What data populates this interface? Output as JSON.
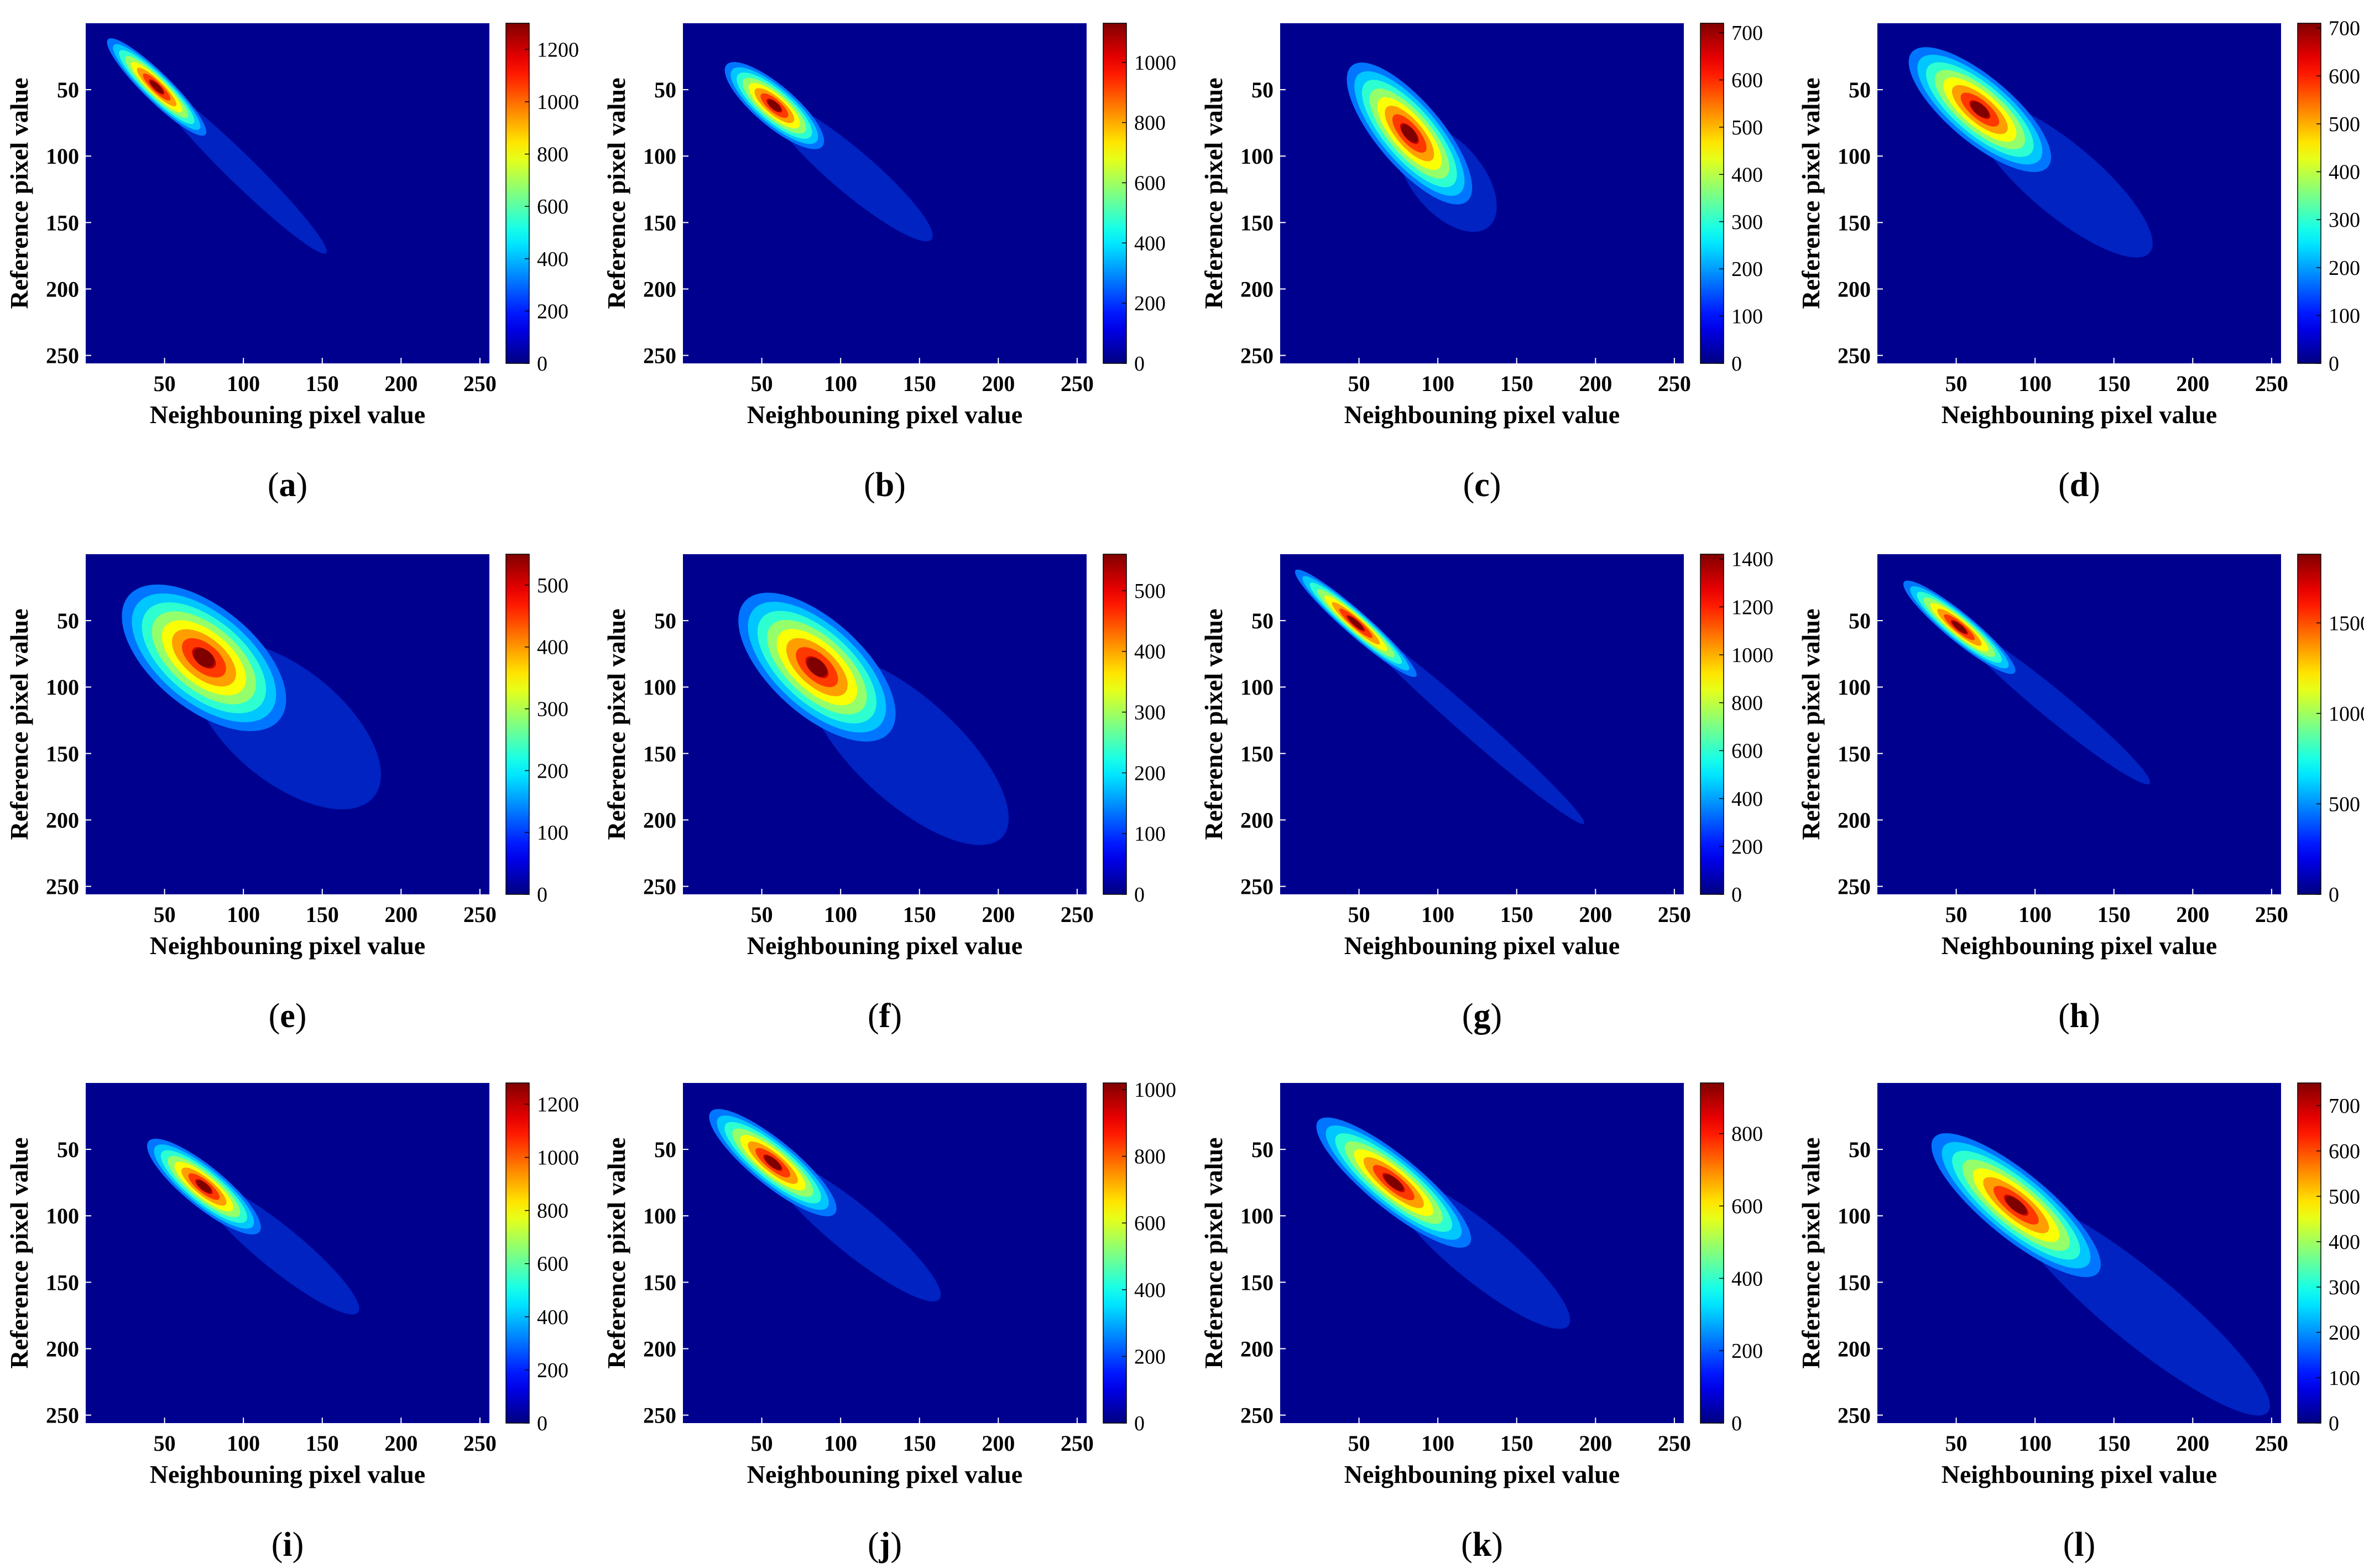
{
  "chart_data": [
    {
      "id": "a",
      "type": "heatmap",
      "caption": "a",
      "xlabel": "Neighbouning pixel value",
      "ylabel": "Reference pixel value",
      "xticks": [
        50,
        100,
        150,
        200,
        250
      ],
      "yticks": [
        50,
        100,
        150,
        200,
        250
      ],
      "xlim": [
        0,
        256
      ],
      "ylim": [
        0,
        256
      ],
      "y_reversed": true,
      "colormap": "jet",
      "cbar_range": [
        0,
        1300
      ],
      "cbar_ticks": [
        0,
        200,
        400,
        600,
        800,
        1000,
        1200
      ],
      "peak": {
        "x": 45,
        "y": 48,
        "value": 1300
      },
      "spread": {
        "major": 38,
        "minor": 6
      },
      "tail_to": [
        150,
        170
      ]
    },
    {
      "id": "b",
      "type": "heatmap",
      "caption": "b",
      "xlabel": "Neighbouning pixel value",
      "ylabel": "Reference pixel value",
      "xticks": [
        50,
        100,
        150,
        200,
        250
      ],
      "yticks": [
        50,
        100,
        150,
        200,
        250
      ],
      "xlim": [
        0,
        256
      ],
      "ylim": [
        0,
        256
      ],
      "y_reversed": true,
      "colormap": "jet",
      "cbar_range": [
        0,
        1130
      ],
      "cbar_ticks": [
        0,
        200,
        400,
        600,
        800,
        1000
      ],
      "peak": {
        "x": 58,
        "y": 62,
        "value": 1130
      },
      "spread": {
        "major": 35,
        "minor": 9
      },
      "tail_to": [
        155,
        160
      ]
    },
    {
      "id": "c",
      "type": "heatmap",
      "caption": "c",
      "xlabel": "Neighbouning pixel value",
      "ylabel": "Reference pixel value",
      "xticks": [
        50,
        100,
        150,
        200,
        250
      ],
      "yticks": [
        50,
        100,
        150,
        200,
        250
      ],
      "xlim": [
        0,
        256
      ],
      "ylim": [
        0,
        256
      ],
      "y_reversed": true,
      "colormap": "jet",
      "cbar_range": [
        0,
        720
      ],
      "cbar_ticks": [
        0,
        100,
        200,
        300,
        400,
        500,
        600,
        700
      ],
      "peak": {
        "x": 82,
        "y": 83,
        "value": 720
      },
      "spread": {
        "major": 50,
        "minor": 15
      },
      "tail_to": [
        130,
        150
      ]
    },
    {
      "id": "d",
      "type": "heatmap",
      "caption": "d",
      "xlabel": "Neighbouning pixel value",
      "ylabel": "Reference pixel value",
      "xticks": [
        50,
        100,
        150,
        200,
        250
      ],
      "yticks": [
        50,
        100,
        150,
        200,
        250
      ],
      "xlim": [
        0,
        256
      ],
      "ylim": [
        0,
        256
      ],
      "y_reversed": true,
      "colormap": "jet",
      "cbar_range": [
        0,
        710
      ],
      "cbar_ticks": [
        0,
        100,
        200,
        300,
        400,
        500,
        600,
        700
      ],
      "peak": {
        "x": 65,
        "y": 65,
        "value": 710
      },
      "spread": {
        "major": 50,
        "minor": 15
      },
      "tail_to": [
        170,
        170
      ]
    },
    {
      "id": "e",
      "type": "heatmap",
      "caption": "e",
      "xlabel": "Neighbouning pixel value",
      "ylabel": "Reference pixel value",
      "xticks": [
        50,
        100,
        150,
        200,
        250
      ],
      "yticks": [
        50,
        100,
        150,
        200,
        250
      ],
      "xlim": [
        0,
        256
      ],
      "ylim": [
        0,
        256
      ],
      "y_reversed": true,
      "colormap": "jet",
      "cbar_range": [
        0,
        550
      ],
      "cbar_ticks": [
        0,
        100,
        200,
        300,
        400,
        500
      ],
      "peak": {
        "x": 75,
        "y": 78,
        "value": 550
      },
      "spread": {
        "major": 55,
        "minor": 24
      },
      "tail_to": [
        180,
        180
      ]
    },
    {
      "id": "f",
      "type": "heatmap",
      "caption": "f",
      "xlabel": "Neighbouning pixel value",
      "ylabel": "Reference pixel value",
      "xticks": [
        50,
        100,
        150,
        200,
        250
      ],
      "yticks": [
        50,
        100,
        150,
        200,
        250
      ],
      "xlim": [
        0,
        256
      ],
      "ylim": [
        0,
        256
      ],
      "y_reversed": true,
      "colormap": "jet",
      "cbar_range": [
        0,
        560
      ],
      "cbar_ticks": [
        0,
        100,
        200,
        300,
        400,
        500
      ],
      "peak": {
        "x": 85,
        "y": 85,
        "value": 560
      },
      "spread": {
        "major": 55,
        "minor": 22
      },
      "tail_to": [
        200,
        210
      ]
    },
    {
      "id": "g",
      "type": "heatmap",
      "caption": "g",
      "xlabel": "Neighbouning pixel value",
      "ylabel": "Reference pixel value",
      "xticks": [
        50,
        100,
        150,
        200,
        250
      ],
      "yticks": [
        50,
        100,
        150,
        200,
        250
      ],
      "xlim": [
        0,
        256
      ],
      "ylim": [
        0,
        256
      ],
      "y_reversed": true,
      "colormap": "jet",
      "cbar_range": [
        0,
        1420
      ],
      "cbar_ticks": [
        0,
        200,
        400,
        600,
        800,
        1000,
        1200,
        1400
      ],
      "peak": {
        "x": 48,
        "y": 52,
        "value": 1420
      },
      "spread": {
        "major": 45,
        "minor": 5
      },
      "tail_to": [
        190,
        200
      ]
    },
    {
      "id": "h",
      "type": "heatmap",
      "caption": "h",
      "xlabel": "Neighbouning pixel value",
      "ylabel": "Reference pixel value",
      "xticks": [
        50,
        100,
        150,
        200,
        250
      ],
      "yticks": [
        50,
        100,
        150,
        200,
        250
      ],
      "xlim": [
        0,
        256
      ],
      "ylim": [
        0,
        256
      ],
      "y_reversed": true,
      "colormap": "jet",
      "cbar_range": [
        0,
        1880
      ],
      "cbar_ticks": [
        0,
        500,
        1000,
        1500
      ],
      "peak": {
        "x": 52,
        "y": 55,
        "value": 1880
      },
      "spread": {
        "major": 40,
        "minor": 6
      },
      "tail_to": [
        170,
        170
      ]
    },
    {
      "id": "i",
      "type": "heatmap",
      "caption": "i",
      "xlabel": "Neighbouning pixel value",
      "ylabel": "Reference pixel value",
      "xticks": [
        50,
        100,
        150,
        200,
        250
      ],
      "yticks": [
        50,
        100,
        150,
        200,
        250
      ],
      "xlim": [
        0,
        256
      ],
      "ylim": [
        0,
        256
      ],
      "y_reversed": true,
      "colormap": "jet",
      "cbar_range": [
        0,
        1280
      ],
      "cbar_ticks": [
        0,
        200,
        400,
        600,
        800,
        1000,
        1200
      ],
      "peak": {
        "x": 75,
        "y": 78,
        "value": 1280
      },
      "spread": {
        "major": 40,
        "minor": 9
      },
      "tail_to": [
        170,
        170
      ]
    },
    {
      "id": "j",
      "type": "heatmap",
      "caption": "j",
      "xlabel": "Neighbouning pixel value",
      "ylabel": "Reference pixel value",
      "xticks": [
        50,
        100,
        150,
        200,
        250
      ],
      "yticks": [
        50,
        100,
        150,
        200,
        250
      ],
      "xlim": [
        0,
        256
      ],
      "ylim": [
        0,
        256
      ],
      "y_reversed": true,
      "colormap": "jet",
      "cbar_range": [
        0,
        1020
      ],
      "cbar_ticks": [
        0,
        200,
        400,
        600,
        800,
        1000
      ],
      "peak": {
        "x": 57,
        "y": 60,
        "value": 1020
      },
      "spread": {
        "major": 45,
        "minor": 10
      },
      "tail_to": [
        160,
        160
      ]
    },
    {
      "id": "k",
      "type": "heatmap",
      "caption": "k",
      "xlabel": "Neighbouning pixel value",
      "ylabel": "Reference pixel value",
      "xticks": [
        50,
        100,
        150,
        200,
        250
      ],
      "yticks": [
        50,
        100,
        150,
        200,
        250
      ],
      "xlim": [
        0,
        256
      ],
      "ylim": [
        0,
        256
      ],
      "y_reversed": true,
      "colormap": "jet",
      "cbar_range": [
        0,
        940
      ],
      "cbar_ticks": [
        0,
        200,
        400,
        600,
        800
      ],
      "peak": {
        "x": 72,
        "y": 75,
        "value": 940
      },
      "spread": {
        "major": 55,
        "minor": 12
      },
      "tail_to": [
        180,
        180
      ]
    },
    {
      "id": "l",
      "type": "heatmap",
      "caption": "l",
      "xlabel": "Neighbouning pixel value",
      "ylabel": "Reference pixel value",
      "xticks": [
        50,
        100,
        150,
        200,
        250
      ],
      "yticks": [
        50,
        100,
        150,
        200,
        250
      ],
      "xlim": [
        0,
        256
      ],
      "ylim": [
        0,
        256
      ],
      "y_reversed": true,
      "colormap": "jet",
      "cbar_range": [
        0,
        750
      ],
      "cbar_ticks": [
        0,
        100,
        200,
        300,
        400,
        500,
        600,
        700
      ],
      "peak": {
        "x": 88,
        "y": 92,
        "value": 750
      },
      "spread": {
        "major": 60,
        "minor": 15
      },
      "tail_to": [
        245,
        245
      ]
    }
  ]
}
